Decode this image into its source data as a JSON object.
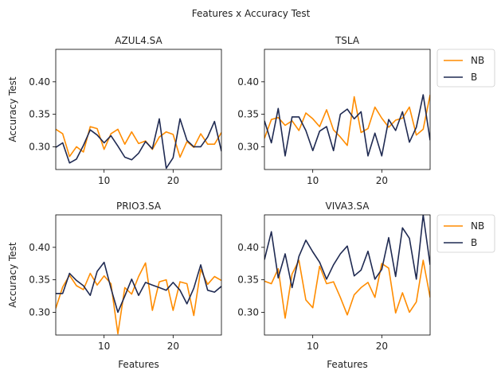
{
  "figure": {
    "title": "Features x Accuracy Test",
    "colors": {
      "NB": "#ff8c00",
      "B": "#1f2a52",
      "axis": "#000000"
    }
  },
  "chart_data": [
    {
      "type": "line",
      "title": "AZUL4.SA",
      "xlabel": "",
      "ylabel": "Accuracy Test",
      "xlim": [
        3,
        27
      ],
      "ylim": [
        0.265,
        0.45
      ],
      "xticks": [
        10,
        20
      ],
      "yticks": [
        0.3,
        0.35,
        0.4
      ],
      "legend": null,
      "series": [
        {
          "name": "NB",
          "x": [
            3,
            4,
            5,
            6,
            7,
            8,
            9,
            10,
            11,
            12,
            13,
            14,
            15,
            16,
            17,
            18,
            19,
            20,
            21,
            22,
            23,
            24,
            25,
            26,
            27
          ],
          "values": [
            0.327,
            0.32,
            0.285,
            0.3,
            0.292,
            0.331,
            0.328,
            0.296,
            0.32,
            0.327,
            0.304,
            0.323,
            0.305,
            0.309,
            0.296,
            0.315,
            0.323,
            0.319,
            0.284,
            0.308,
            0.299,
            0.32,
            0.304,
            0.304,
            0.322
          ]
        },
        {
          "name": "B",
          "x": [
            3,
            4,
            5,
            6,
            7,
            8,
            9,
            10,
            11,
            12,
            13,
            14,
            15,
            16,
            17,
            18,
            19,
            20,
            21,
            22,
            23,
            24,
            25,
            26,
            27
          ],
          "values": [
            0.299,
            0.306,
            0.275,
            0.281,
            0.302,
            0.326,
            0.318,
            0.306,
            0.317,
            0.301,
            0.284,
            0.28,
            0.29,
            0.308,
            0.297,
            0.343,
            0.267,
            0.283,
            0.343,
            0.31,
            0.3,
            0.3,
            0.315,
            0.339,
            0.293
          ]
        }
      ]
    },
    {
      "type": "line",
      "title": "TSLA",
      "xlabel": "",
      "ylabel": "",
      "xlim": [
        3,
        27
      ],
      "ylim": [
        0.265,
        0.45
      ],
      "xticks": [
        10,
        20
      ],
      "yticks": [
        0.3,
        0.35,
        0.4
      ],
      "legend": "outside-right",
      "series": [
        {
          "name": "NB",
          "x": [
            3,
            4,
            5,
            6,
            7,
            8,
            9,
            10,
            11,
            12,
            13,
            14,
            15,
            16,
            17,
            18,
            19,
            20,
            21,
            22,
            23,
            24,
            25,
            26,
            27
          ],
          "values": [
            0.313,
            0.342,
            0.345,
            0.333,
            0.34,
            0.325,
            0.352,
            0.343,
            0.331,
            0.357,
            0.326,
            0.315,
            0.302,
            0.377,
            0.322,
            0.328,
            0.361,
            0.344,
            0.33,
            0.341,
            0.344,
            0.361,
            0.318,
            0.327,
            0.38
          ]
        },
        {
          "name": "B",
          "x": [
            3,
            4,
            5,
            6,
            7,
            8,
            9,
            10,
            11,
            12,
            13,
            14,
            15,
            16,
            17,
            18,
            19,
            20,
            21,
            22,
            23,
            24,
            25,
            26,
            27
          ],
          "values": [
            0.34,
            0.306,
            0.359,
            0.286,
            0.346,
            0.346,
            0.325,
            0.294,
            0.324,
            0.331,
            0.294,
            0.35,
            0.358,
            0.343,
            0.354,
            0.286,
            0.321,
            0.286,
            0.342,
            0.325,
            0.354,
            0.307,
            0.33,
            0.38,
            0.31
          ]
        }
      ]
    },
    {
      "type": "line",
      "title": "PRIO3.SA",
      "xlabel": "Features",
      "ylabel": "Accuracy Test",
      "xlim": [
        3,
        27
      ],
      "ylim": [
        0.265,
        0.45
      ],
      "xticks": [
        10,
        20
      ],
      "yticks": [
        0.3,
        0.35,
        0.4
      ],
      "legend": null,
      "series": [
        {
          "name": "NB",
          "x": [
            3,
            4,
            5,
            6,
            7,
            8,
            9,
            10,
            11,
            12,
            13,
            14,
            15,
            16,
            17,
            18,
            19,
            20,
            21,
            22,
            23,
            24,
            25,
            26,
            27
          ],
          "values": [
            0.306,
            0.339,
            0.357,
            0.341,
            0.335,
            0.36,
            0.342,
            0.356,
            0.344,
            0.267,
            0.338,
            0.328,
            0.355,
            0.376,
            0.303,
            0.347,
            0.35,
            0.303,
            0.347,
            0.344,
            0.295,
            0.366,
            0.343,
            0.355,
            0.349
          ]
        },
        {
          "name": "B",
          "x": [
            3,
            4,
            5,
            6,
            7,
            8,
            9,
            10,
            11,
            12,
            13,
            14,
            15,
            16,
            17,
            18,
            19,
            20,
            21,
            22,
            23,
            24,
            25,
            26,
            27
          ],
          "values": [
            0.329,
            0.329,
            0.36,
            0.349,
            0.341,
            0.326,
            0.363,
            0.377,
            0.337,
            0.3,
            0.325,
            0.351,
            0.326,
            0.346,
            0.342,
            0.338,
            0.334,
            0.346,
            0.334,
            0.313,
            0.337,
            0.373,
            0.334,
            0.331,
            0.34
          ]
        }
      ]
    },
    {
      "type": "line",
      "title": "VIVA3.SA",
      "xlabel": "Features",
      "ylabel": "",
      "xlim": [
        3,
        27
      ],
      "ylim": [
        0.265,
        0.45
      ],
      "xticks": [
        10,
        20
      ],
      "yticks": [
        0.3,
        0.35,
        0.4
      ],
      "legend": "outside-right",
      "series": [
        {
          "name": "NB",
          "x": [
            3,
            4,
            5,
            6,
            7,
            8,
            9,
            10,
            11,
            12,
            13,
            14,
            15,
            16,
            17,
            18,
            19,
            20,
            21,
            22,
            23,
            24,
            25,
            26,
            27
          ],
          "values": [
            0.348,
            0.344,
            0.367,
            0.291,
            0.359,
            0.38,
            0.319,
            0.307,
            0.371,
            0.344,
            0.347,
            0.323,
            0.296,
            0.327,
            0.338,
            0.346,
            0.323,
            0.375,
            0.368,
            0.299,
            0.33,
            0.3,
            0.316,
            0.38,
            0.323
          ]
        },
        {
          "name": "B",
          "x": [
            3,
            4,
            5,
            6,
            7,
            8,
            9,
            10,
            11,
            12,
            13,
            14,
            15,
            16,
            17,
            18,
            19,
            20,
            21,
            22,
            23,
            24,
            25,
            26,
            27
          ],
          "values": [
            0.381,
            0.424,
            0.353,
            0.39,
            0.338,
            0.386,
            0.411,
            0.393,
            0.377,
            0.351,
            0.373,
            0.39,
            0.402,
            0.356,
            0.365,
            0.394,
            0.351,
            0.366,
            0.415,
            0.355,
            0.43,
            0.414,
            0.351,
            0.45,
            0.373
          ]
        }
      ]
    }
  ]
}
